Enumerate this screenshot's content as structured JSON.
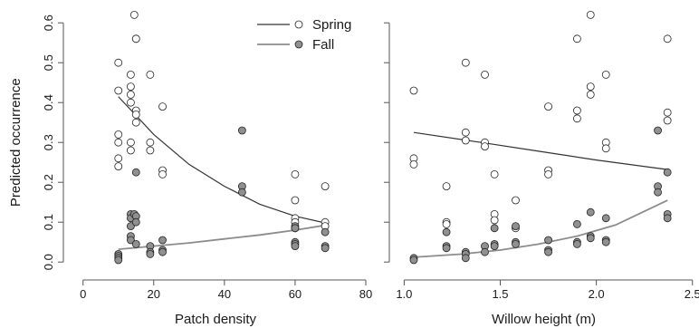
{
  "chart_data": [
    {
      "type": "scatter",
      "panel": "left",
      "xlabel": "Patch density",
      "ylabel": "Predicted occurrence",
      "xlim": [
        -3,
        80
      ],
      "ylim": [
        -0.02,
        0.63
      ],
      "xticks": [
        0,
        20,
        40,
        60,
        80
      ],
      "xtick_labels": [
        "0",
        "20",
        "40",
        "60",
        "80"
      ],
      "yticks": [
        0.0,
        0.1,
        0.2,
        0.3,
        0.4,
        0.5,
        0.6
      ],
      "ytick_labels": [
        "0.0",
        "0.1",
        "0.2",
        "0.3",
        "0.4",
        "0.5",
        "0.6"
      ],
      "legend": {
        "placement": "top-right",
        "entries": [
          {
            "label": "Spring",
            "marker": "open-circle",
            "line_color": "#333333"
          },
          {
            "label": "Fall",
            "marker": "filled-circle",
            "line_color": "#8c8c8c"
          }
        ]
      },
      "series": [
        {
          "name": "Spring",
          "marker_fill": "#ffffff",
          "line_color": "#333333",
          "points": [
            [
              10,
              0.5
            ],
            [
              10,
              0.43
            ],
            [
              10,
              0.32
            ],
            [
              10,
              0.3
            ],
            [
              10,
              0.26
            ],
            [
              10,
              0.24
            ],
            [
              13.5,
              0.47
            ],
            [
              13.5,
              0.44
            ],
            [
              13.5,
              0.42
            ],
            [
              13.5,
              0.4
            ],
            [
              13.5,
              0.3
            ],
            [
              13.5,
              0.28
            ],
            [
              14.5,
              0.62
            ],
            [
              15,
              0.56
            ],
            [
              15,
              0.56
            ],
            [
              15,
              0.38
            ],
            [
              15,
              0.37
            ],
            [
              15,
              0.35
            ],
            [
              19,
              0.47
            ],
            [
              19,
              0.3
            ],
            [
              19,
              0.28
            ],
            [
              22.5,
              0.39
            ],
            [
              22.5,
              0.23
            ],
            [
              22.5,
              0.22
            ],
            [
              60,
              0.22
            ],
            [
              60,
              0.155
            ],
            [
              60,
              0.11
            ],
            [
              60,
              0.1
            ],
            [
              60,
              0.085
            ],
            [
              68.5,
              0.19
            ],
            [
              68.5,
              0.1
            ],
            [
              68.5,
              0.09
            ]
          ],
          "curve": [
            [
              10,
              0.415
            ],
            [
              20,
              0.32
            ],
            [
              30,
              0.245
            ],
            [
              40,
              0.19
            ],
            [
              50,
              0.145
            ],
            [
              60,
              0.115
            ],
            [
              69,
              0.097
            ]
          ]
        },
        {
          "name": "Fall",
          "marker_fill": "#909090",
          "line_color": "#8c8c8c",
          "points": [
            [
              10,
              0.02
            ],
            [
              10,
              0.015
            ],
            [
              10,
              0.01
            ],
            [
              10,
              0.005
            ],
            [
              13.5,
              0.12
            ],
            [
              13.5,
              0.11
            ],
            [
              13.5,
              0.09
            ],
            [
              13.5,
              0.065
            ],
            [
              13.5,
              0.055
            ],
            [
              14.5,
              0.12
            ],
            [
              15,
              0.115
            ],
            [
              15,
              0.1
            ],
            [
              15,
              0.045
            ],
            [
              15,
              0.225
            ],
            [
              19,
              0.04
            ],
            [
              19,
              0.025
            ],
            [
              19,
              0.02
            ],
            [
              22.5,
              0.055
            ],
            [
              22.5,
              0.03
            ],
            [
              22.5,
              0.025
            ],
            [
              45,
              0.33
            ],
            [
              45,
              0.19
            ],
            [
              45,
              0.175
            ],
            [
              60,
              0.09
            ],
            [
              60,
              0.085
            ],
            [
              60,
              0.05
            ],
            [
              60,
              0.045
            ],
            [
              60,
              0.04
            ],
            [
              68.5,
              0.075
            ],
            [
              68.5,
              0.04
            ],
            [
              68.5,
              0.035
            ]
          ],
          "curve": [
            [
              10,
              0.032
            ],
            [
              20,
              0.04
            ],
            [
              30,
              0.048
            ],
            [
              40,
              0.058
            ],
            [
              50,
              0.068
            ],
            [
              60,
              0.08
            ],
            [
              69,
              0.093
            ]
          ]
        }
      ]
    },
    {
      "type": "scatter",
      "panel": "right",
      "xlabel": "Willow height (m)",
      "ylabel": "",
      "xlim": [
        0.97,
        2.52
      ],
      "ylim": [
        -0.02,
        0.63
      ],
      "xticks": [
        1.0,
        1.5,
        2.0,
        2.5
      ],
      "xtick_labels": [
        "1.0",
        "1.5",
        "2.0",
        "2.5"
      ],
      "series": [
        {
          "name": "Spring",
          "marker_fill": "#ffffff",
          "line_color": "#333333",
          "points": [
            [
              1.05,
              0.43
            ],
            [
              1.05,
              0.26
            ],
            [
              1.05,
              0.245
            ],
            [
              1.22,
              0.19
            ],
            [
              1.22,
              0.1
            ],
            [
              1.22,
              0.095
            ],
            [
              1.32,
              0.5
            ],
            [
              1.32,
              0.325
            ],
            [
              1.32,
              0.305
            ],
            [
              1.42,
              0.47
            ],
            [
              1.42,
              0.3
            ],
            [
              1.42,
              0.29
            ],
            [
              1.47,
              0.22
            ],
            [
              1.47,
              0.12
            ],
            [
              1.47,
              0.105
            ],
            [
              1.58,
              0.155
            ],
            [
              1.58,
              0.085
            ],
            [
              1.75,
              0.39
            ],
            [
              1.75,
              0.23
            ],
            [
              1.75,
              0.22
            ],
            [
              1.9,
              0.56
            ],
            [
              1.9,
              0.38
            ],
            [
              1.9,
              0.36
            ],
            [
              1.97,
              0.62
            ],
            [
              1.97,
              0.44
            ],
            [
              1.97,
              0.42
            ],
            [
              2.05,
              0.47
            ],
            [
              2.05,
              0.3
            ],
            [
              2.05,
              0.285
            ],
            [
              2.37,
              0.56
            ],
            [
              2.37,
              0.375
            ],
            [
              2.37,
              0.355
            ]
          ],
          "curve": [
            [
              1.05,
              0.325
            ],
            [
              1.4,
              0.3
            ],
            [
              1.7,
              0.278
            ],
            [
              2.0,
              0.256
            ],
            [
              2.37,
              0.232
            ]
          ]
        },
        {
          "name": "Fall",
          "marker_fill": "#909090",
          "line_color": "#8c8c8c",
          "points": [
            [
              1.05,
              0.01
            ],
            [
              1.05,
              0.005
            ],
            [
              1.22,
              0.075
            ],
            [
              1.22,
              0.04
            ],
            [
              1.22,
              0.035
            ],
            [
              1.32,
              0.025
            ],
            [
              1.32,
              0.02
            ],
            [
              1.32,
              0.01
            ],
            [
              1.42,
              0.04
            ],
            [
              1.42,
              0.025
            ],
            [
              1.47,
              0.085
            ],
            [
              1.47,
              0.045
            ],
            [
              1.47,
              0.04
            ],
            [
              1.58,
              0.09
            ],
            [
              1.58,
              0.05
            ],
            [
              1.58,
              0.045
            ],
            [
              1.75,
              0.055
            ],
            [
              1.75,
              0.03
            ],
            [
              1.75,
              0.025
            ],
            [
              1.9,
              0.095
            ],
            [
              1.9,
              0.05
            ],
            [
              1.9,
              0.045
            ],
            [
              1.97,
              0.125
            ],
            [
              1.97,
              0.065
            ],
            [
              1.97,
              0.06
            ],
            [
              2.05,
              0.11
            ],
            [
              2.05,
              0.055
            ],
            [
              2.05,
              0.05
            ],
            [
              2.32,
              0.33
            ],
            [
              2.32,
              0.19
            ],
            [
              2.32,
              0.175
            ],
            [
              2.37,
              0.225
            ],
            [
              2.37,
              0.12
            ],
            [
              2.37,
              0.11
            ]
          ],
          "curve": [
            [
              1.05,
              0.012
            ],
            [
              1.3,
              0.02
            ],
            [
              1.5,
              0.03
            ],
            [
              1.7,
              0.045
            ],
            [
              1.9,
              0.065
            ],
            [
              2.1,
              0.093
            ],
            [
              2.37,
              0.155
            ]
          ]
        }
      ]
    }
  ]
}
